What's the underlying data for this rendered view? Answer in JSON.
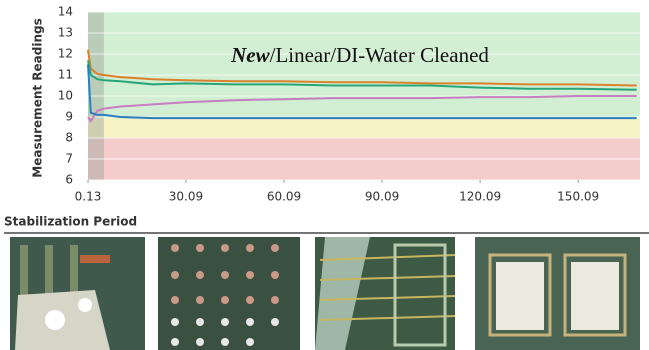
{
  "chart_data": {
    "type": "line",
    "title": {
      "emphasis": "New",
      "rest": "/Linear/DI-Water Cleaned"
    },
    "y_label": "Measurement Readings",
    "caption": "Stabilization Period",
    "x": [
      0.13,
      1,
      3,
      5,
      10,
      20,
      30,
      45,
      60,
      75,
      90,
      105,
      120,
      135,
      150,
      168
    ],
    "series": [
      {
        "color": "#d9822b",
        "values": [
          12.2,
          11.3,
          11.05,
          11.0,
          10.9,
          10.8,
          10.75,
          10.7,
          10.7,
          10.65,
          10.65,
          10.6,
          10.6,
          10.55,
          10.55,
          10.5
        ]
      },
      {
        "color": "#27a57a",
        "values": [
          11.7,
          11.0,
          10.8,
          10.75,
          10.7,
          10.55,
          10.6,
          10.55,
          10.55,
          10.5,
          10.5,
          10.5,
          10.4,
          10.35,
          10.35,
          10.3
        ]
      },
      {
        "color": "#c77dc1",
        "values": [
          9.0,
          8.8,
          9.3,
          9.4,
          9.5,
          9.6,
          9.7,
          9.8,
          9.85,
          9.9,
          9.9,
          9.9,
          9.95,
          9.95,
          10.0,
          10.0
        ]
      },
      {
        "color": "#2a7fc0",
        "values": [
          11.5,
          9.2,
          9.1,
          9.1,
          9.0,
          8.95,
          8.95,
          8.95,
          8.95,
          8.95,
          8.95,
          8.95,
          8.95,
          8.95,
          8.95,
          8.95
        ]
      }
    ],
    "bands": [
      {
        "from": 6,
        "to": 8,
        "color": "#f5cccc"
      },
      {
        "from": 8,
        "to": 9,
        "color": "#f7f1c6"
      },
      {
        "from": 9,
        "to": 14,
        "color": "#d3efd3"
      }
    ],
    "shade": {
      "from": 0.13,
      "to": 5,
      "color": "#9aa59a"
    },
    "xlim": [
      0.13,
      169
    ],
    "xticks": [
      0.13,
      30.09,
      60.09,
      90.09,
      120.09,
      150.09
    ],
    "ylim": [
      6,
      14
    ],
    "yticks": [
      6,
      7,
      8,
      9,
      10,
      11,
      12,
      13,
      14
    ],
    "grid": true
  }
}
